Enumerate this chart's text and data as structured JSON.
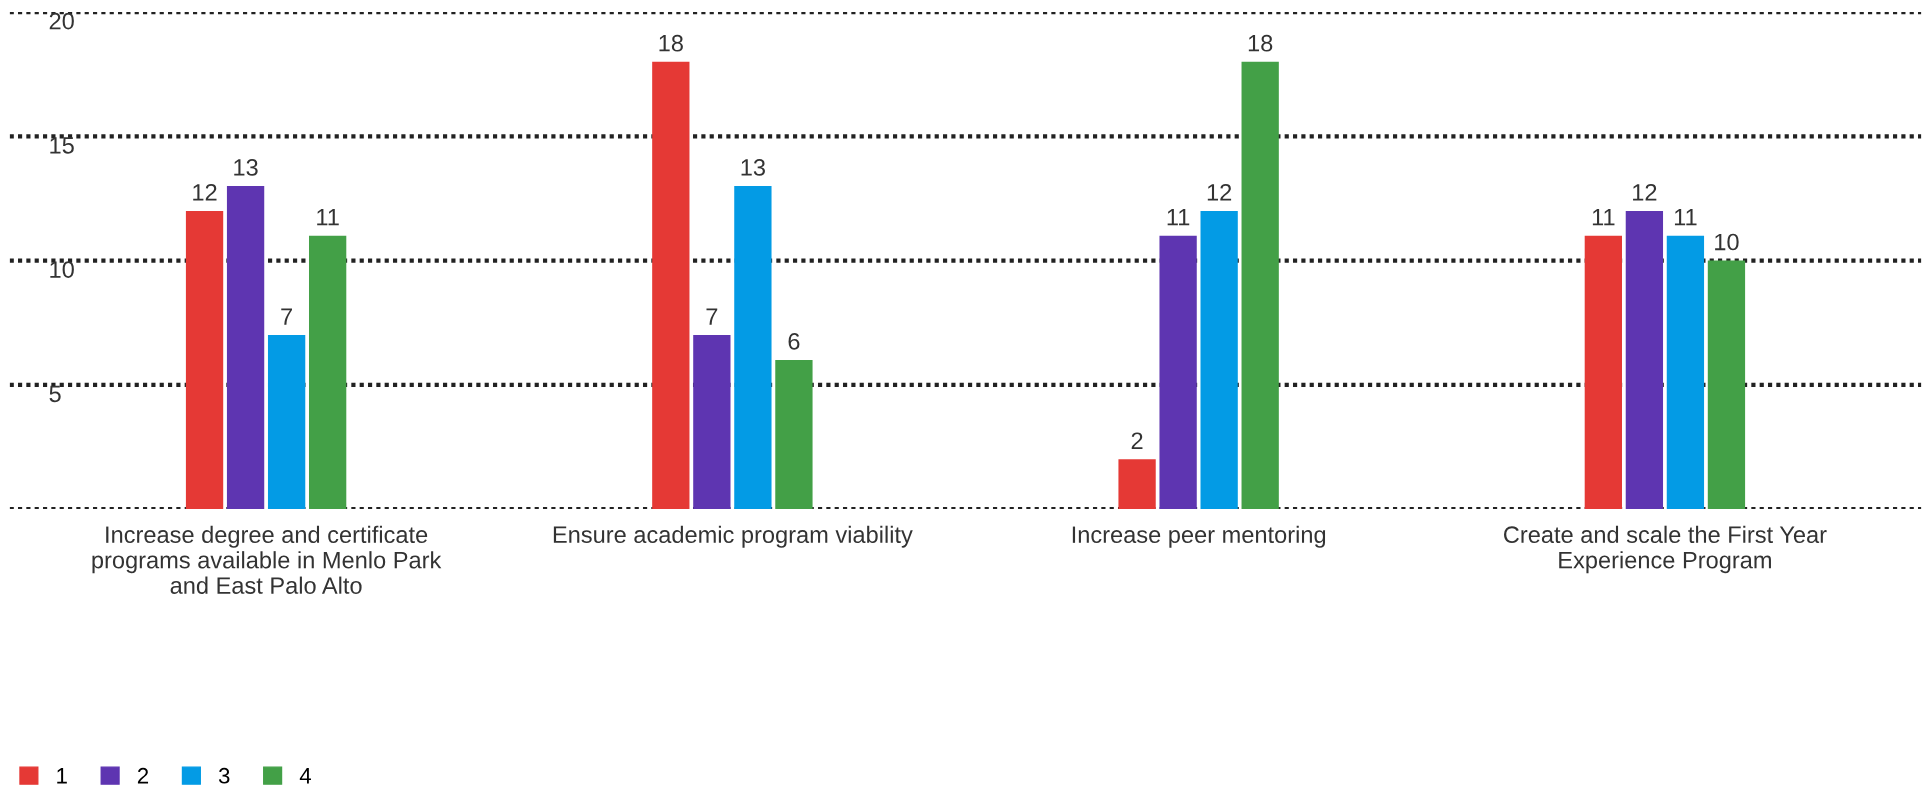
{
  "chart_data": {
    "type": "bar",
    "categories": [
      "Increase degree and certificate\nprograms available in Menlo Park\nand East Palo Alto",
      "Ensure academic program viability",
      "Increase peer mentoring",
      "Create and scale the First Year\nExperience Program"
    ],
    "series": [
      {
        "name": "1",
        "color": "#e53935",
        "values": [
          12,
          18,
          2,
          11
        ]
      },
      {
        "name": "2",
        "color": "#5e35b1",
        "values": [
          13,
          7,
          11,
          12
        ]
      },
      {
        "name": "3",
        "color": "#039be5",
        "values": [
          7,
          13,
          12,
          11
        ]
      },
      {
        "name": "4",
        "color": "#43a047",
        "values": [
          11,
          6,
          18,
          10
        ]
      }
    ],
    "ylim": [
      0,
      20
    ],
    "yticks": [
      {
        "value": 0,
        "label": null
      },
      5,
      10,
      15,
      20
    ],
    "grid": "y",
    "legend": "bottom left",
    "data_labels": true
  }
}
